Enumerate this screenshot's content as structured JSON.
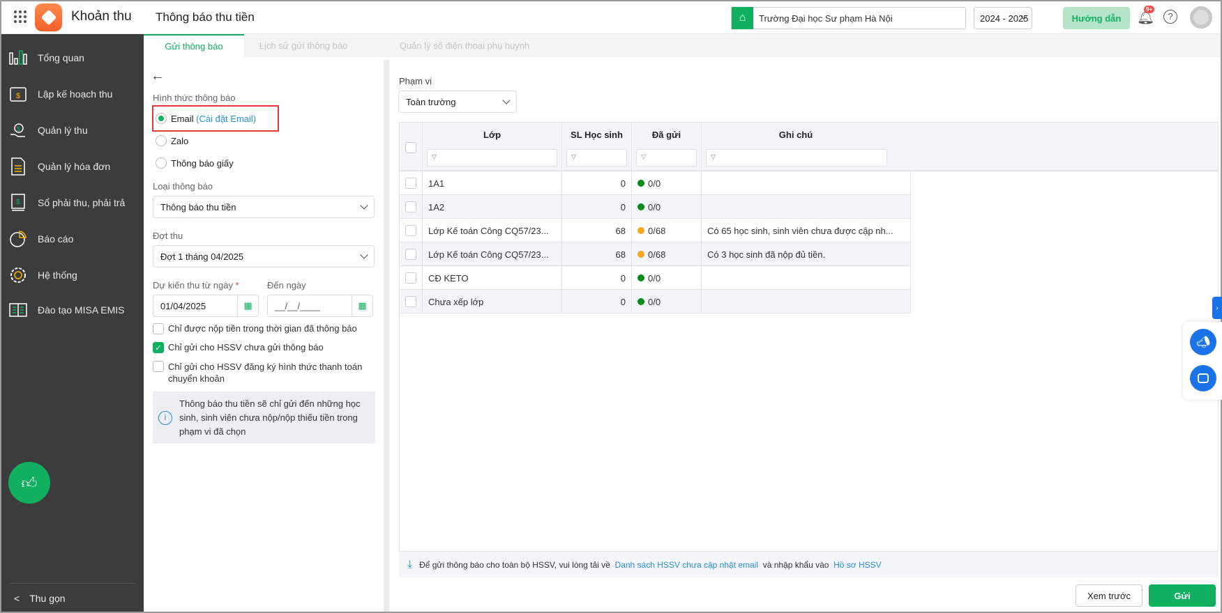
{
  "header": {
    "app_name": "Khoản thu",
    "page_title": "Thông báo thu tiền",
    "school": "Trường Đại học Sư phạm Hà Nội",
    "year": "2024 - 2025",
    "guide_label": "Hướng dẫn",
    "notif_badge": "9+"
  },
  "sidebar": {
    "items": [
      {
        "label": "Tổng quan",
        "icon": "bar-chart-icon"
      },
      {
        "label": "Lập kế hoạch thu",
        "icon": "calendar-dollar-icon"
      },
      {
        "label": "Quản lý thu",
        "icon": "hand-coin-icon"
      },
      {
        "label": "Quản lý hóa đơn",
        "icon": "invoice-icon"
      },
      {
        "label": "Sổ phải thu, phải trả",
        "icon": "ledger-icon"
      },
      {
        "label": "Báo cáo",
        "icon": "pie-chart-icon"
      },
      {
        "label": "Hệ thống",
        "icon": "gear-icon"
      },
      {
        "label": "Đào tạo MISA EMIS",
        "icon": "book-icon"
      }
    ],
    "collapse_label": "Thu gọn"
  },
  "tabs": [
    {
      "label": "Gửi thông báo",
      "active": true
    },
    {
      "label": "Lịch sử gửi thông báo"
    },
    {
      "label": "Quản lý số điện thoại phụ huynh"
    }
  ],
  "form": {
    "method_label": "Hình thức thông báo",
    "methods": [
      {
        "label": "Email",
        "selected": true,
        "extra": "(Cài đặt Email)"
      },
      {
        "label": "Zalo"
      },
      {
        "label": "Thông báo giấy"
      }
    ],
    "type_label": "Loại thông báo",
    "type_value": "Thông báo thu tiền",
    "period_label": "Đợt thu",
    "period_value": "Đợt 1 tháng 04/2025",
    "from_label": "Dự kiến thu từ ngày",
    "required": "*",
    "from_value": "01/04/2025",
    "to_label": "Đến ngày",
    "to_placeholder": "__/__/____",
    "checks": [
      {
        "label": "Chỉ được nộp tiền trong thời gian đã thông báo",
        "checked": false
      },
      {
        "label": "Chỉ gửi cho HSSV chưa gửi thông báo",
        "checked": true
      },
      {
        "label": "Chỉ gửi cho HSSV đăng ký hình thức thanh toán chuyển khoản",
        "checked": false
      }
    ],
    "info": "Thông báo thu tiền sẽ chỉ gửi đến những học sinh, sinh viên chưa nộp/nộp thiếu tiền trong phạm vi đã chọn"
  },
  "scope": {
    "label": "Phạm vi",
    "value": "Toàn trường"
  },
  "table": {
    "columns": [
      "Lớp",
      "SL Học sinh",
      "Đã gửi",
      "Ghi chú"
    ],
    "rows": [
      {
        "class": "1A1",
        "count": "0",
        "sent": "0/0",
        "status": "green",
        "note": ""
      },
      {
        "class": "1A2",
        "count": "0",
        "sent": "0/0",
        "status": "green",
        "note": ""
      },
      {
        "class": "Lớp Kế toán Công CQ57/23...",
        "count": "68",
        "sent": "0/68",
        "status": "orange",
        "note": "Có 65 học sinh, sinh viên chưa được cập nh..."
      },
      {
        "class": "Lớp Kế toán Công CQ57/23...",
        "count": "68",
        "sent": "0/68",
        "status": "orange",
        "note": "Có 3 học sinh đã nộp đủ tiền."
      },
      {
        "class": "CĐ KETO",
        "count": "0",
        "sent": "0/0",
        "status": "green",
        "note": ""
      },
      {
        "class": "Chưa xếp lớp",
        "count": "0",
        "sent": "0/0",
        "status": "green",
        "note": ""
      }
    ]
  },
  "footer": {
    "note_prefix": "Để gửi thông báo cho toàn bộ HSSV, vui lòng tải về",
    "link1": "Danh sách HSSV chưa cập nhật email",
    "note_mid": "và nhập khẩu vào",
    "link2": "Hồ sơ HSSV",
    "preview_label": "Xem trước",
    "send_label": "Gửi"
  },
  "colors": {
    "accent": "#10b060",
    "sidebar": "#3c3c3c",
    "link": "#2a8fd6",
    "green_dot": "#0a8a1a",
    "orange_dot": "#f5a623",
    "highlight": "#e53935"
  }
}
